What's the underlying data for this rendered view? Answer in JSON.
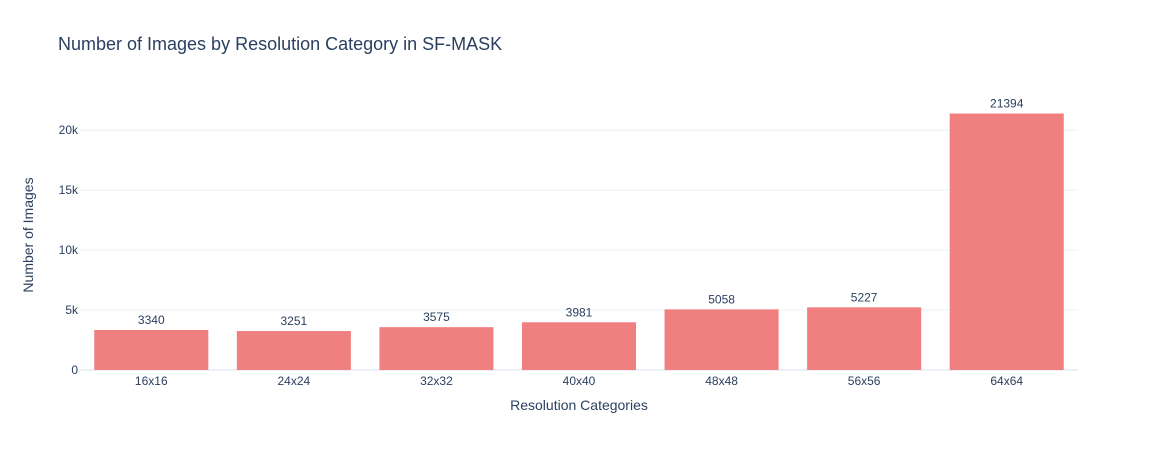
{
  "chart_data": {
    "type": "bar",
    "title": "Number of Images by Resolution Category in SF-MASK",
    "xlabel": "Resolution Categories",
    "ylabel": "Number of Images",
    "categories": [
      "16x16",
      "24x24",
      "32x32",
      "40x40",
      "48x48",
      "56x56",
      "64x64"
    ],
    "values": [
      3340,
      3251,
      3575,
      3981,
      5058,
      5227,
      21394
    ],
    "data_labels": [
      "3340",
      "3251",
      "3575",
      "3981",
      "5058",
      "5227",
      "21394"
    ],
    "ylim": [
      0,
      22520
    ],
    "yticks": [
      0,
      5000,
      10000,
      15000,
      20000
    ],
    "ytick_labels": [
      "0",
      "5k",
      "10k",
      "15k",
      "20k"
    ],
    "grid": true,
    "legend": "none",
    "colors": {
      "bar": "#f08080",
      "text": "#2a3f5f",
      "grid": "#ebf0f8"
    }
  }
}
